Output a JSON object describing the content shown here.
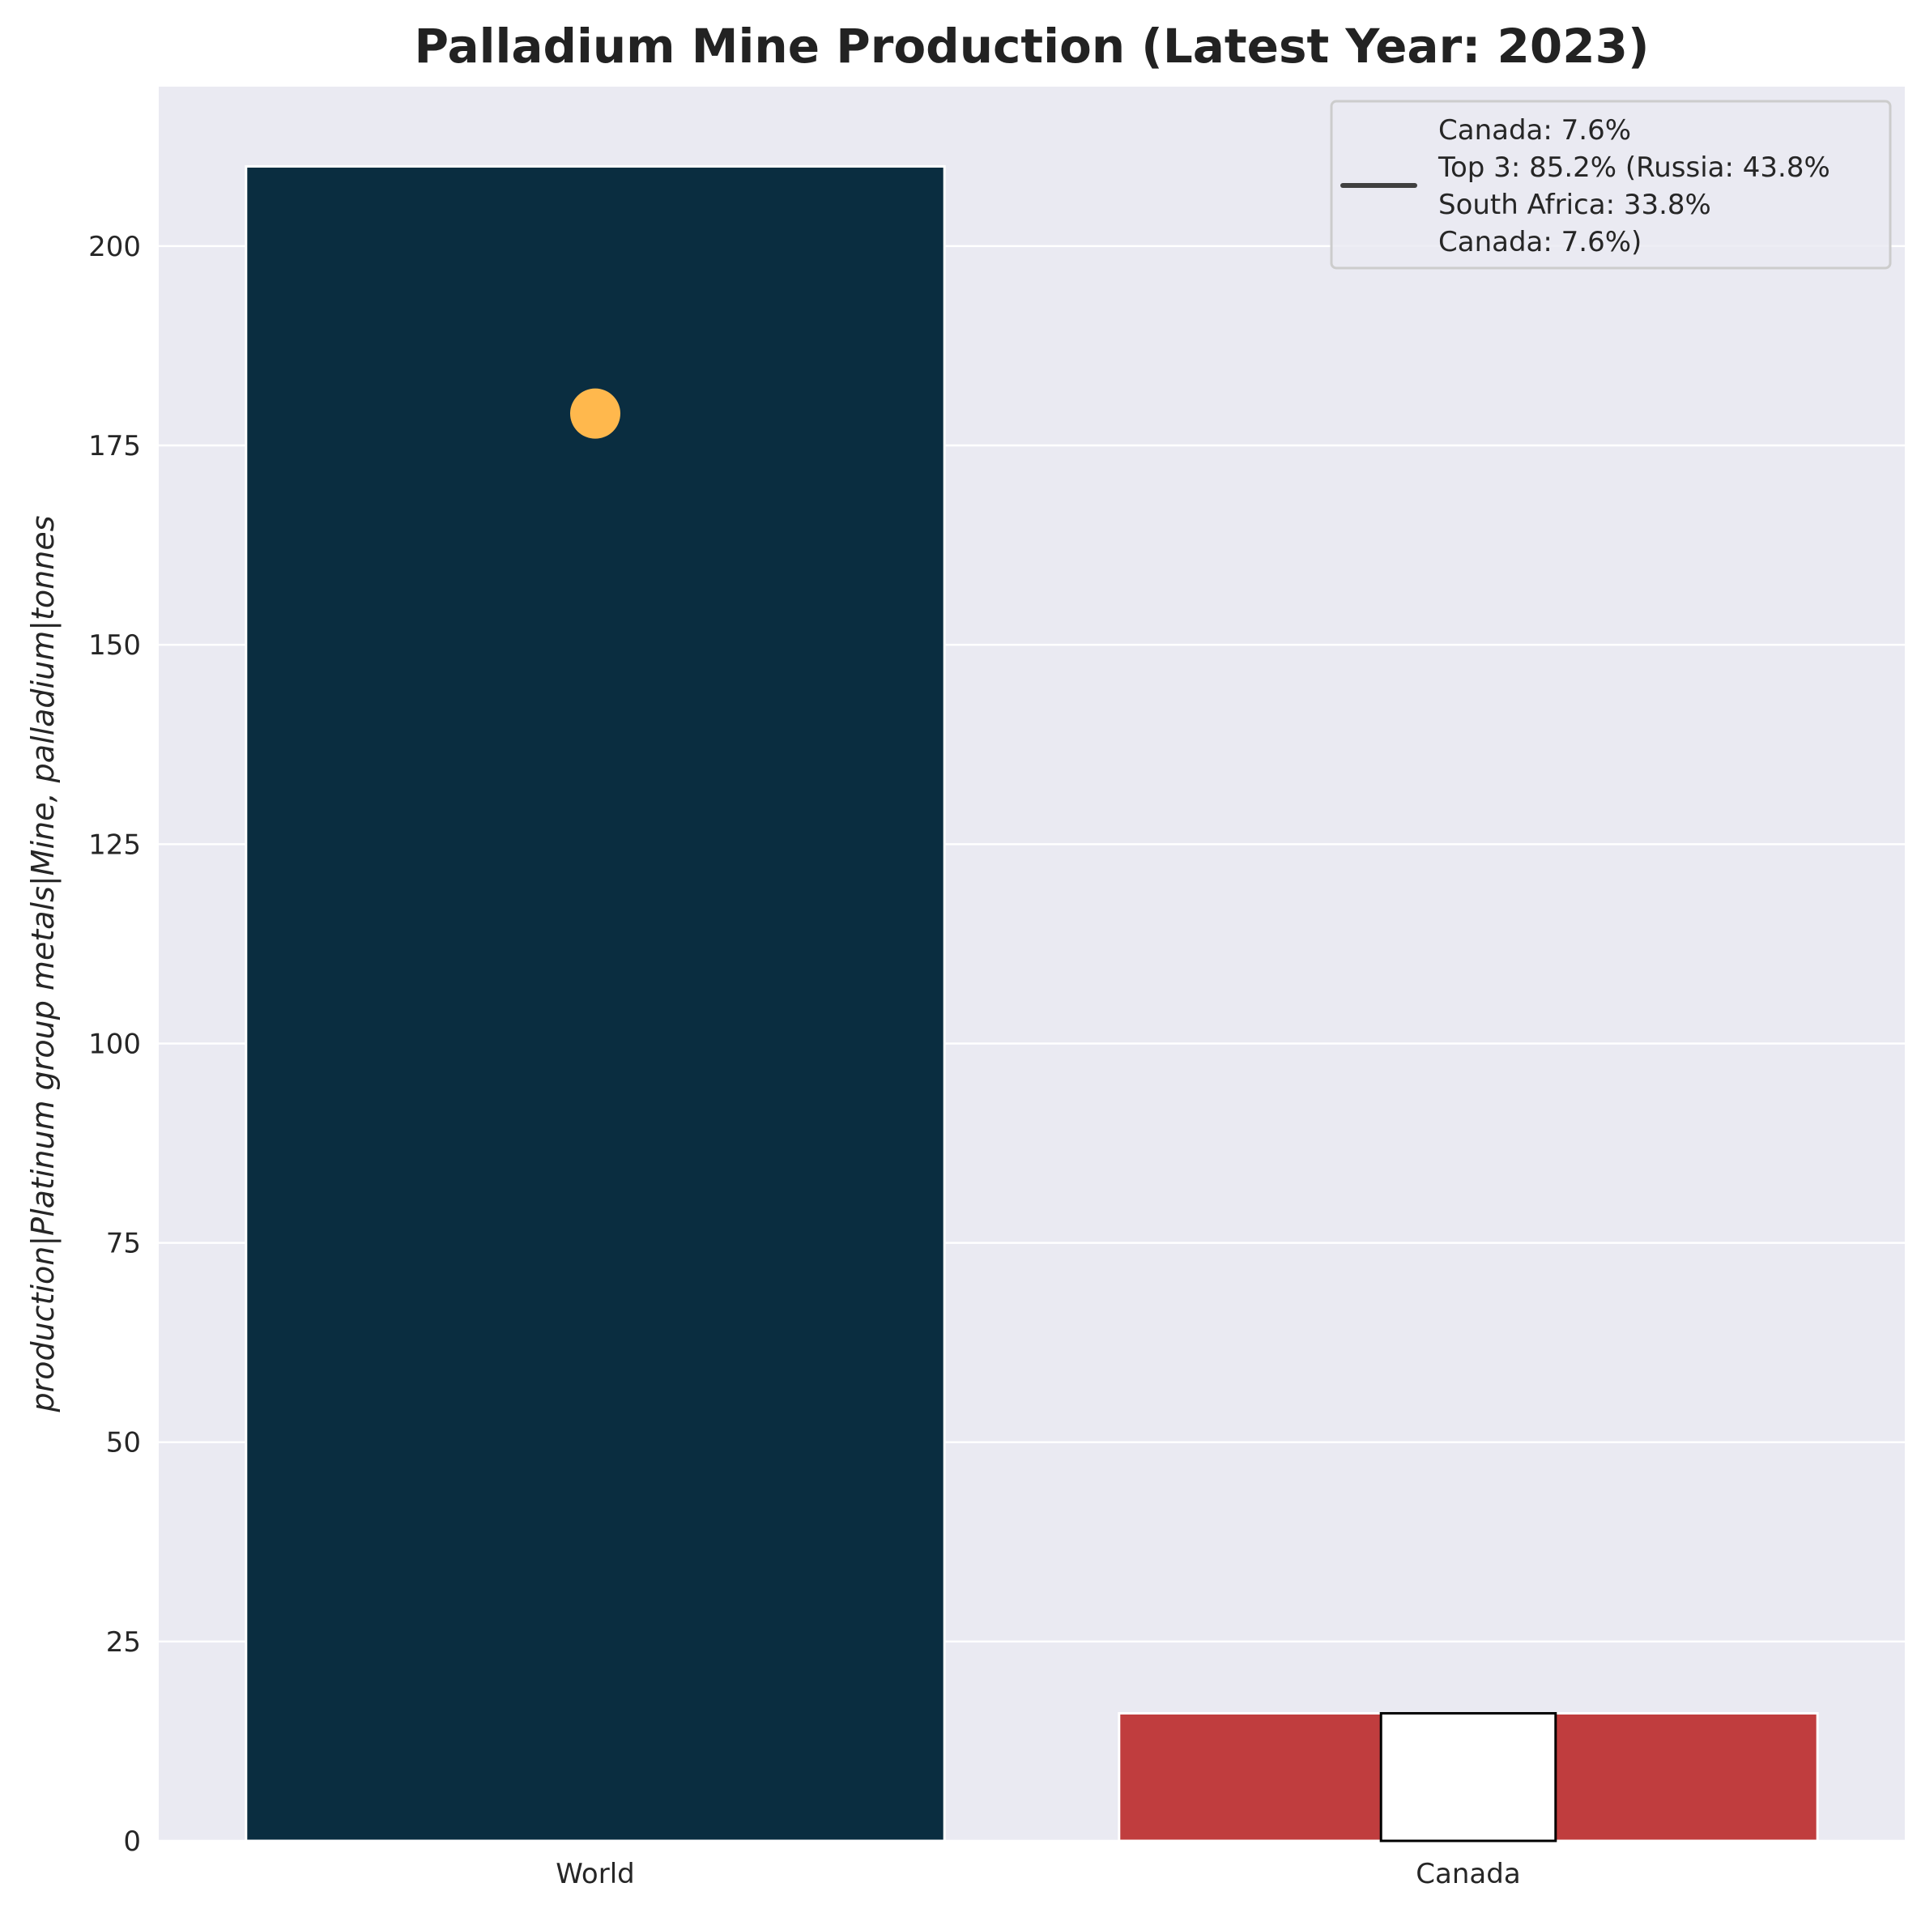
{
  "chart_data": {
    "type": "bar",
    "title": "Palladium Mine Production (Latest Year: 2023)",
    "xlabel": "",
    "ylabel": "production|Platinum group metals|Mine, palladium|tonnes",
    "categories": [
      "World",
      "Canada"
    ],
    "values": [
      210,
      16
    ],
    "bar_colors": [
      "#0a2d40",
      "#c03d3e"
    ],
    "ylim": [
      0,
      220
    ],
    "yticks": [
      0,
      25,
      50,
      75,
      100,
      125,
      150,
      175,
      200
    ],
    "grid": true,
    "marker": {
      "category": "World",
      "value": 179,
      "color": "#ffb84d"
    },
    "inset_box": {
      "category": "Canada",
      "value": 16,
      "fill": "#ffffff",
      "edge": "#000000"
    },
    "legend": {
      "placement": "top-right",
      "lines": [
        "Canada: 7.6%",
        "Top 3: 85.2% (Russia: 43.8%",
        "South Africa: 33.8%",
        "Canada: 7.6%)"
      ],
      "line_color": "#404040"
    },
    "background": "#eaeaf2",
    "grid_color": "#ffffff"
  }
}
